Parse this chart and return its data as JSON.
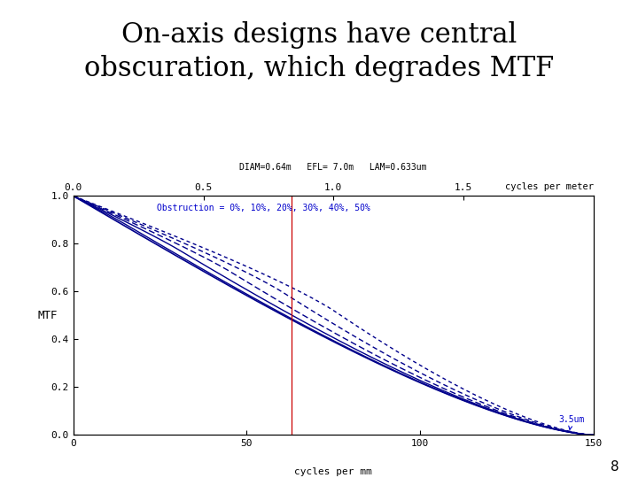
{
  "title_line1": "On-axis designs have central",
  "title_line2": "obscuration, which degrades MTF",
  "title_fontsize": 22,
  "title_font": "serif",
  "bg_color": "#ffffff",
  "plot_bg_color": "#ffffff",
  "curve_color": "#00008B",
  "red_line_color": "#cc0000",
  "annotation_color": "#0000cc",
  "obstruction_label": "Obstruction = 0%, 10%, 20%, 30%, 40%, 50%",
  "top_label": "DIAM=0.64m   EFL= 7.0m   LAM=0.633um",
  "top_axis_label": "cycles per meter",
  "ylabel": "MTF",
  "xlabel": "cycles per mm",
  "xlim": [
    0,
    150
  ],
  "ylim": [
    0.0,
    1.0
  ],
  "xticks": [
    0,
    50,
    100,
    150
  ],
  "yticks": [
    0.0,
    0.2,
    0.4,
    0.6,
    0.8,
    1.0
  ],
  "ytick_labels": [
    "0.0",
    "0.2",
    "0.4",
    "0.6",
    "0.8",
    "1.0"
  ],
  "red_vline_x": 63,
  "annotation_3_5um": "3.5um",
  "obstruction_fractions": [
    0.0,
    0.1,
    0.2,
    0.3,
    0.4,
    0.5
  ],
  "cutoff_freq": 150,
  "page_number": "8"
}
